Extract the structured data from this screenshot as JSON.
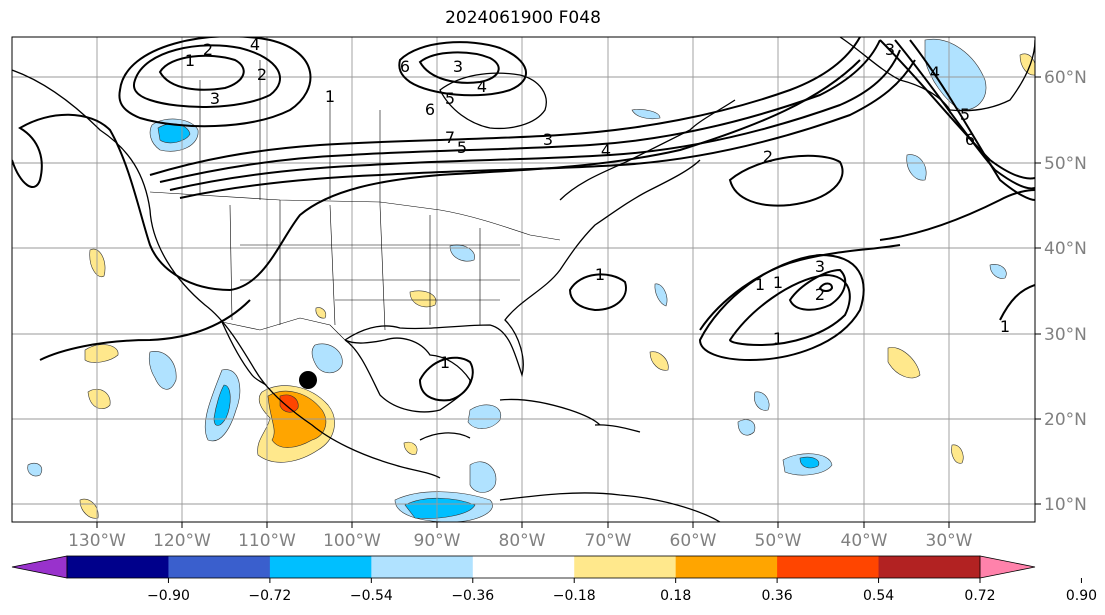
{
  "title": "2024061900 F048",
  "map": {
    "lon_labels": [
      "130°W",
      "120°W",
      "110°W",
      "100°W",
      "90°W",
      "80°W",
      "70°W",
      "60°W",
      "50°W",
      "40°W",
      "30°W"
    ],
    "lat_labels": [
      "60°N",
      "50°N",
      "40°N",
      "30°N",
      "20°N",
      "10°N"
    ],
    "contour_labels": [
      "1",
      "2",
      "4",
      "2",
      "3",
      "1",
      "5",
      "6",
      "3",
      "4",
      "6",
      "7",
      "5",
      "3",
      "4",
      "2",
      "1",
      "1",
      "1",
      "3",
      "1",
      "2",
      "3",
      "4",
      "5",
      "6",
      "1",
      "1"
    ],
    "storm_marker": "storm-center-marker"
  },
  "colorbar": {
    "colors": [
      "#9932cc",
      "#00008b",
      "#3a5fcd",
      "#00bfff",
      "#b0e2ff",
      "#ffffff",
      "#ffe88c",
      "#ffa500",
      "#ff4500",
      "#b22222",
      "#ff82ab"
    ],
    "ticks": [
      "−0.90",
      "−0.72",
      "−0.54",
      "−0.36",
      "−0.18",
      "0.18",
      "0.36",
      "0.54",
      "0.72",
      "0.90"
    ]
  }
}
